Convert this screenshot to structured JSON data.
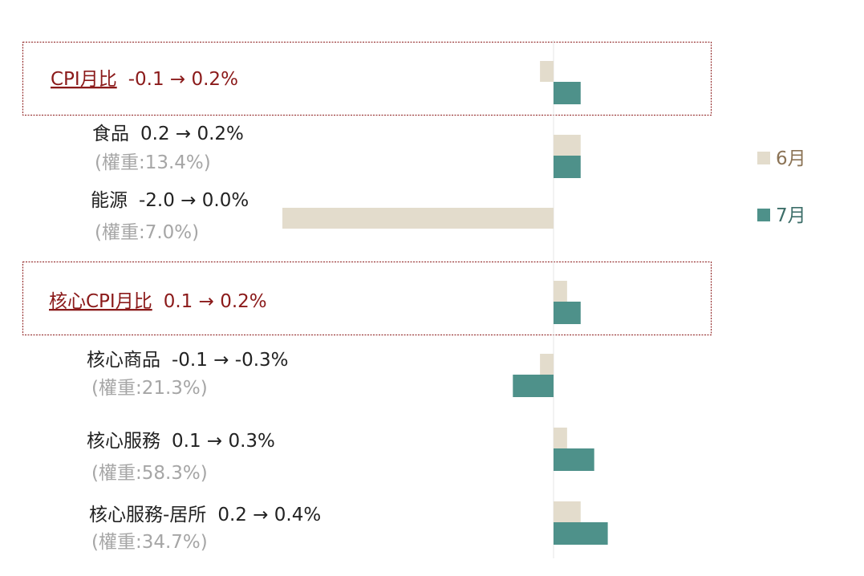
{
  "chart_data": {
    "type": "bar",
    "orientation": "horizontal",
    "series": [
      {
        "name": "6月",
        "color": "#e3dccc",
        "values": [
          -0.1,
          0.2,
          -2.0,
          0.1,
          -0.1,
          0.1,
          0.2
        ]
      },
      {
        "name": "7月",
        "color": "#4e918a",
        "values": [
          0.2,
          0.2,
          0.0,
          0.2,
          -0.3,
          0.3,
          0.4
        ]
      }
    ],
    "categories": [
      {
        "name": "CPI月比",
        "change": "-0.1 → 0.2%",
        "weight": "",
        "highlight": true
      },
      {
        "name": "食品",
        "change": "0.2 → 0.2%",
        "weight": "(權重:13.4%)",
        "highlight": false
      },
      {
        "name": "能源",
        "change": "-2.0 → 0.0%",
        "weight": "(權重:7.0%)",
        "highlight": false
      },
      {
        "name": "核心CPI月比",
        "change": "0.1 → 0.2%",
        "weight": "",
        "highlight": true
      },
      {
        "name": "核心商品",
        "change": "-0.1 → -0.3%",
        "weight": "(權重:21.3%)",
        "highlight": false
      },
      {
        "name": "核心服務",
        "change": "0.1 → 0.3%",
        "weight": "(權重:58.3%)",
        "highlight": false
      },
      {
        "name": "核心服務-居所",
        "change": "0.2 → 0.4%",
        "weight": "(權重:34.7%)",
        "highlight": false
      }
    ],
    "xlim": [
      -2.0,
      0.4
    ],
    "legend_position": "right",
    "grid": false,
    "colors": {
      "highlight_text": "#8b1a1a",
      "highlight_border": "#8b1a1a",
      "weight_text": "#a6a6a6",
      "june_legend_text": "#8b7355",
      "july_legend_text": "#3d6e69"
    }
  }
}
